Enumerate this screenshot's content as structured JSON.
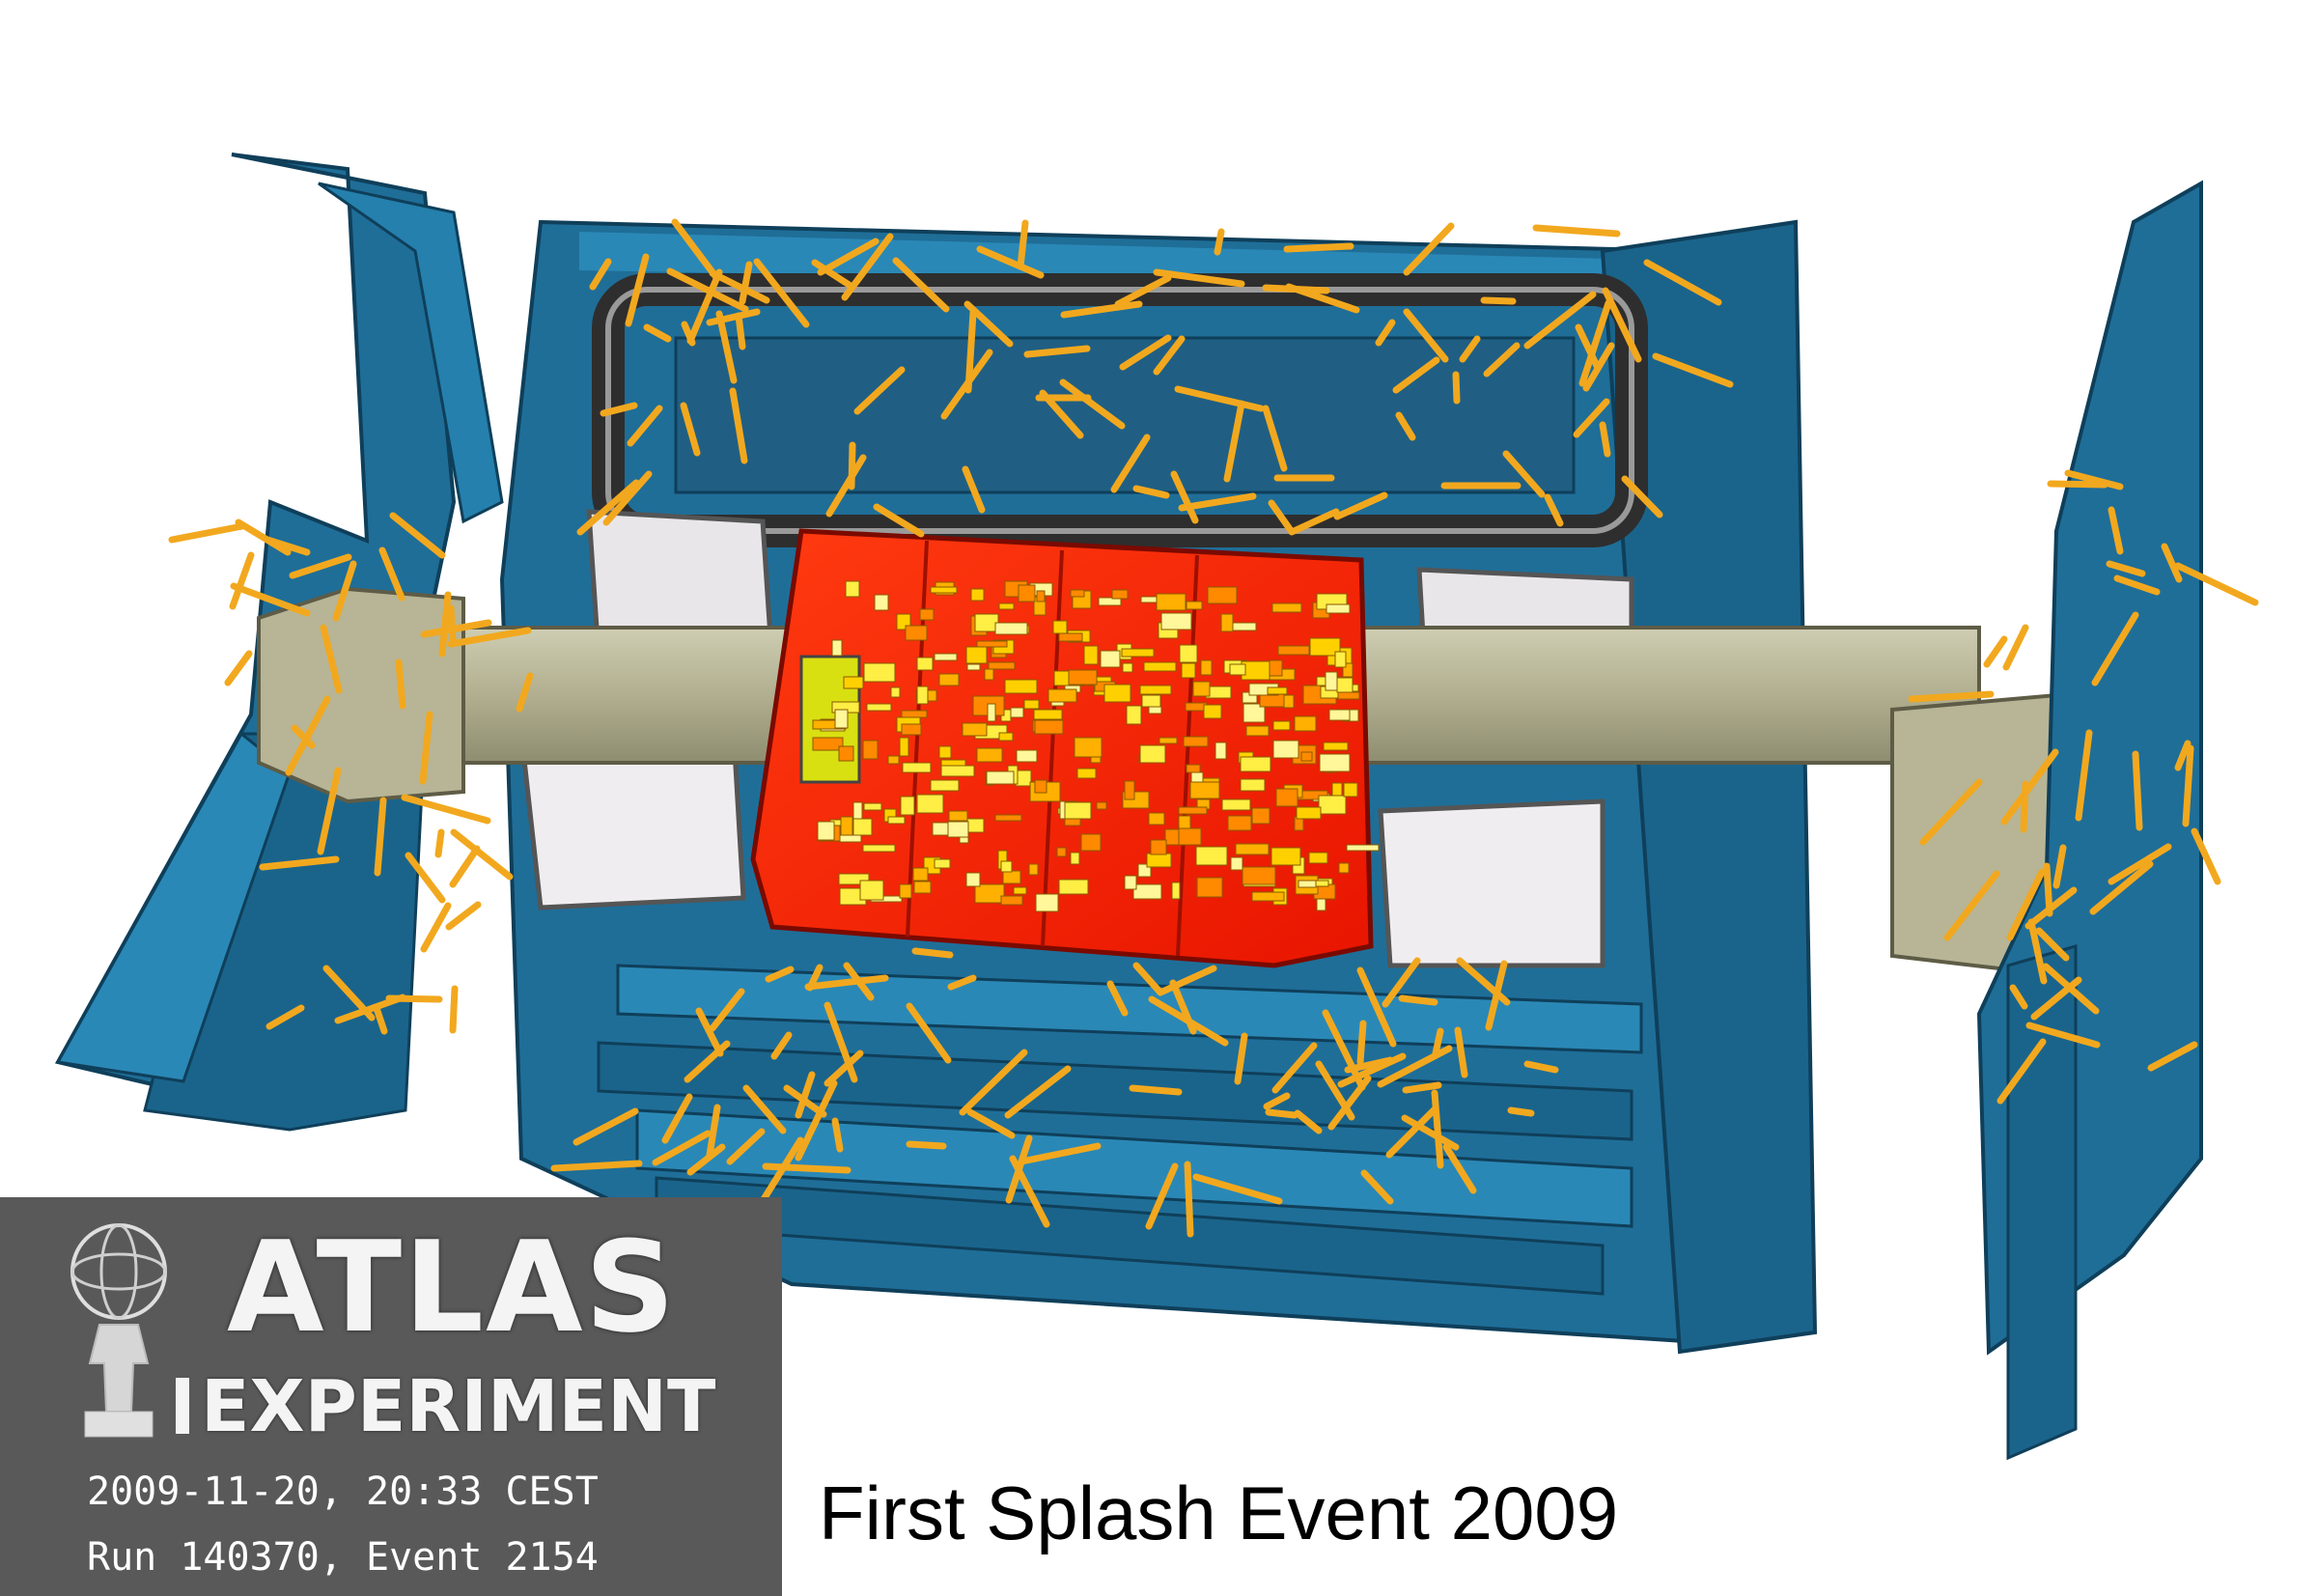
{
  "logo": {
    "line1": "ATLAS",
    "line2": "EXPERIMENT"
  },
  "event": {
    "datetime": "2009-11-20, 20:33 CEST",
    "run_event": "Run 140370, Event 2154"
  },
  "caption": "First Splash Event 2009",
  "colors": {
    "detector_blue": "#1f6e98",
    "detector_dark": "#164f70",
    "calorimeter_red": "#ff2000",
    "hit_yellow": "#ffee44",
    "track_orange": "#f2a81e",
    "beampipe_khaki": "#b7b596",
    "magnet_black": "#333333",
    "logo_bg": "#595959"
  }
}
